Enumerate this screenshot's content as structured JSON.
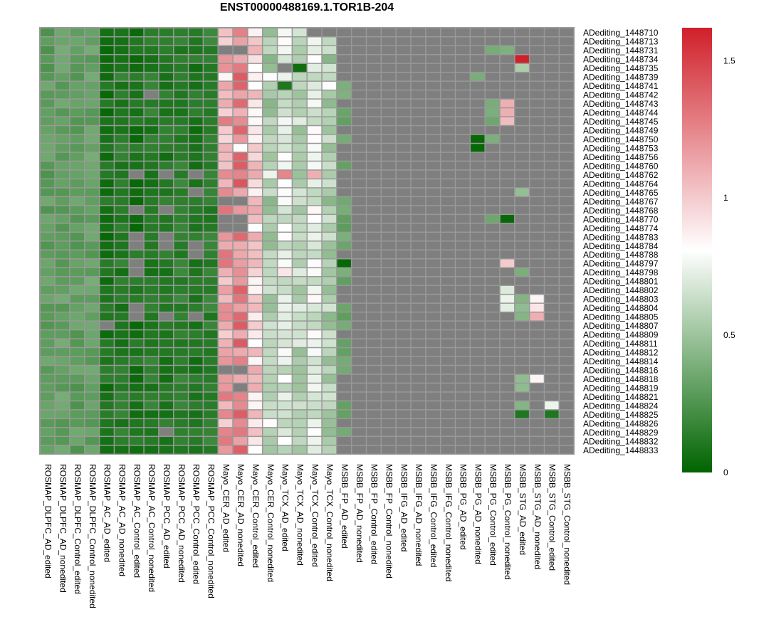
{
  "chart_data": {
    "type": "heatmap",
    "title": "ENST00000488169.1.TOR1B-204",
    "rows": [
      "ADediting_1448710",
      "ADediting_1448713",
      "ADediting_1448731",
      "ADediting_1448734",
      "ADediting_1448735",
      "ADediting_1448739",
      "ADediting_1448741",
      "ADediting_1448742",
      "ADediting_1448743",
      "ADediting_1448744",
      "ADediting_1448745",
      "ADediting_1448749",
      "ADediting_1448750",
      "ADediting_1448753",
      "ADediting_1448756",
      "ADediting_1448760",
      "ADediting_1448762",
      "ADediting_1448764",
      "ADediting_1448765",
      "ADediting_1448767",
      "ADediting_1448768",
      "ADediting_1448770",
      "ADediting_1448774",
      "ADediting_1448783",
      "ADediting_1448784",
      "ADediting_1448788",
      "ADediting_1448797",
      "ADediting_1448798",
      "ADediting_1448801",
      "ADediting_1448802",
      "ADediting_1448803",
      "ADediting_1448804",
      "ADediting_1448805",
      "ADediting_1448807",
      "ADediting_1448809",
      "ADediting_1448811",
      "ADediting_1448812",
      "ADediting_1448814",
      "ADediting_1448816",
      "ADediting_1448818",
      "ADediting_1448819",
      "ADediting_1448821",
      "ADediting_1448824",
      "ADediting_1448825",
      "ADediting_1448826",
      "ADediting_1448829",
      "ADediting_1448832",
      "ADediting_1448833"
    ],
    "columns": [
      "ROSMAP_DLPFC_AD_edited",
      "ROSMAP_DLPFC_AD_nonedited",
      "ROSMAP_DLPFC_Control_edited",
      "ROSMAP_DLPFC_Control_nonedited",
      "ROSMAP_AC_AD_edited",
      "ROSMAP_AC_AD_nonedited",
      "ROSMAP_AC_Control_edited",
      "ROSMAP_AC_Control_nonedited",
      "ROSMAP_PCC_AD_edited",
      "ROSMAP_PCC_AD_nonedited",
      "ROSMAP_PCC_Control_edited",
      "ROSMAP_PCC_Control_nonedited",
      "Mayo_CER_AD_edited",
      "Mayo_CER_AD_nonedited",
      "Mayo_CER_Control_edited",
      "Mayo_CER_Control_nonedited",
      "Mayo_TCX_AD_edited",
      "Mayo_TCX_AD_nonedited",
      "Mayo_TCX_Control_edited",
      "Mayo_TCX_Control_nonedited",
      "MSBB_FP_AD_edited",
      "MSBB_FP_AD_nonedited",
      "MSBB_FP_Control_edited",
      "MSBB_FP_Control_nonedited",
      "MSBB_IFG_AD_edited",
      "MSBB_IFG_AD_nonedited",
      "MSBB_IFG_Control_edited",
      "MSBB_IFG_Control_nonedited",
      "MSBB_PG_AD_edited",
      "MSBB_PG_AD_nonedited",
      "MSBB_PG_Control_edited",
      "MSBB_PG_Control_nonedited",
      "MSBB_STG_AD_edited",
      "MSBB_STG_AD_nonedited",
      "MSBB_STG_Control_edited",
      "MSBB_STG_Control_nonedited"
    ],
    "base_values": [
      0.3,
      0.32,
      0.3,
      0.32,
      0.08,
      0.12,
      0.08,
      0.12,
      0.1,
      0.14,
      0.1,
      0.14,
      1.15,
      1.25,
      0.95,
      0.55,
      0.7,
      0.6,
      0.72,
      0.55,
      0.35,
      0.38,
      0.38,
      0.38,
      0.35,
      0.35,
      0.38,
      0.38,
      0.35,
      0.38,
      0.4,
      0.4,
      0.42,
      0.48,
      0.45,
      0.48
    ],
    "missing": {
      "0": [
        18,
        19,
        20,
        21,
        22,
        23,
        24,
        25,
        26,
        27,
        28,
        29,
        30,
        31,
        32,
        33,
        34,
        35
      ],
      "1": [
        20,
        21,
        22,
        23,
        24,
        25,
        26,
        27,
        28,
        29,
        30,
        31,
        32,
        33,
        34,
        35
      ],
      "2": [
        12,
        13,
        20,
        21,
        22,
        23,
        24,
        25,
        26,
        27,
        28,
        29,
        32,
        33,
        34,
        35
      ],
      "3": [
        20,
        21,
        22,
        23,
        24,
        25,
        26,
        27,
        28,
        29,
        30,
        31,
        33,
        34,
        35
      ],
      "4": [
        16,
        20,
        21,
        22,
        23,
        24,
        25,
        26,
        27,
        28,
        29,
        30,
        31,
        32,
        33,
        34,
        35
      ],
      "5": [
        20,
        21,
        22,
        23,
        24,
        25,
        26,
        27,
        28,
        30,
        31,
        32,
        33,
        34,
        35
      ],
      "6": [
        21,
        22,
        23,
        24,
        25,
        26,
        27,
        28,
        29,
        30,
        31,
        32,
        33,
        34,
        35
      ],
      "7": [
        7,
        21,
        22,
        23,
        24,
        25,
        26,
        27,
        28,
        29,
        30,
        31,
        32,
        33,
        34,
        35
      ],
      "8": [
        20,
        21,
        22,
        23,
        24,
        25,
        26,
        27,
        28,
        29,
        31,
        32,
        33,
        34,
        35
      ],
      "9": [
        21,
        22,
        23,
        24,
        25,
        26,
        27,
        28,
        29,
        31,
        32,
        33,
        34,
        35
      ],
      "10": [
        21,
        22,
        23,
        24,
        25,
        26,
        27,
        28,
        29,
        31,
        32,
        33,
        34,
        35
      ],
      "11": [
        20,
        21,
        22,
        23,
        24,
        25,
        26,
        27,
        28,
        29,
        30,
        31,
        32,
        33,
        34,
        35
      ],
      "12": [
        21,
        22,
        23,
        24,
        25,
        26,
        27,
        28,
        29,
        31,
        32,
        33,
        34,
        35
      ],
      "13": [
        20,
        21,
        22,
        23,
        24,
        25,
        26,
        27,
        28,
        29,
        30,
        31,
        32,
        33,
        34,
        35
      ],
      "14": [
        20,
        21,
        22,
        23,
        24,
        25,
        26,
        27,
        28,
        29,
        30,
        31,
        32,
        33,
        34,
        35
      ],
      "15": [
        21,
        22,
        23,
        24,
        25,
        26,
        27,
        28,
        29,
        30,
        31,
        32,
        33,
        34,
        35
      ],
      "16": [
        6,
        8,
        10,
        20,
        21,
        22,
        23,
        24,
        25,
        26,
        27,
        28,
        29,
        30,
        31,
        32,
        33,
        34,
        35
      ],
      "17": [
        20,
        21,
        22,
        23,
        24,
        25,
        26,
        27,
        28,
        29,
        30,
        31,
        32,
        33,
        34,
        35
      ],
      "18": [
        10,
        20,
        21,
        22,
        23,
        24,
        25,
        26,
        27,
        28,
        29,
        30,
        31,
        33,
        34,
        35
      ],
      "19": [
        12,
        13,
        21,
        22,
        23,
        24,
        25,
        26,
        27,
        28,
        29,
        30,
        31,
        32,
        33,
        34,
        35
      ],
      "20": [
        6,
        8,
        21,
        22,
        23,
        24,
        25,
        26,
        27,
        28,
        29,
        30,
        31,
        32,
        33,
        34,
        35
      ],
      "21": [
        12,
        13,
        21,
        22,
        23,
        24,
        25,
        26,
        27,
        28,
        29,
        31,
        32,
        33,
        34,
        35
      ],
      "22": [
        12,
        13,
        21,
        22,
        23,
        24,
        25,
        26,
        27,
        28,
        29,
        30,
        31,
        32,
        33,
        34,
        35
      ],
      "23": [
        6,
        8,
        21,
        22,
        23,
        24,
        25,
        26,
        27,
        28,
        29,
        30,
        31,
        32,
        33,
        34,
        35
      ],
      "24": [
        6,
        8,
        10,
        21,
        22,
        23,
        24,
        25,
        26,
        27,
        28,
        29,
        30,
        31,
        32,
        33,
        34,
        35
      ],
      "25": [
        10,
        20,
        21,
        22,
        23,
        24,
        25,
        26,
        27,
        28,
        29,
        30,
        31,
        32,
        33,
        34,
        35
      ],
      "26": [
        6,
        21,
        22,
        23,
        24,
        25,
        26,
        27,
        28,
        29,
        30,
        31,
        32,
        33,
        34,
        35
      ],
      "27": [
        6,
        21,
        22,
        23,
        24,
        25,
        26,
        27,
        28,
        29,
        30,
        31,
        33,
        34,
        35
      ],
      "28": [
        21,
        22,
        23,
        24,
        25,
        26,
        27,
        28,
        29,
        30,
        31,
        32,
        33,
        34,
        35
      ],
      "29": [
        20,
        21,
        22,
        23,
        24,
        25,
        26,
        27,
        28,
        29,
        30,
        31,
        32,
        33,
        34,
        35
      ],
      "30": [
        20,
        21,
        22,
        23,
        24,
        25,
        26,
        27,
        28,
        29,
        30,
        31,
        33,
        34,
        35
      ],
      "31": [
        6,
        21,
        22,
        23,
        24,
        25,
        26,
        27,
        28,
        29,
        30,
        31,
        33,
        34,
        35
      ],
      "32": [
        6,
        8,
        10,
        21,
        22,
        23,
        24,
        25,
        26,
        27,
        28,
        29,
        30,
        31,
        33,
        34,
        35
      ],
      "33": [
        4,
        21,
        22,
        23,
        24,
        25,
        26,
        27,
        28,
        29,
        30,
        31,
        32,
        33,
        34,
        35
      ],
      "34": [
        20,
        21,
        22,
        23,
        24,
        25,
        26,
        27,
        28,
        29,
        30,
        31,
        32,
        33,
        34,
        35
      ],
      "35": [
        21,
        22,
        23,
        24,
        25,
        26,
        27,
        28,
        29,
        30,
        31,
        32,
        33,
        34,
        35
      ],
      "36": [
        21,
        22,
        23,
        24,
        25,
        26,
        27,
        28,
        29,
        30,
        31,
        32,
        33,
        34,
        35
      ],
      "37": [
        21,
        22,
        23,
        24,
        25,
        26,
        27,
        28,
        29,
        30,
        31,
        32,
        33,
        34,
        35
      ],
      "38": [
        12,
        13,
        21,
        22,
        23,
        24,
        25,
        26,
        27,
        28,
        29,
        30,
        31,
        32,
        33,
        34,
        35
      ],
      "39": [
        20,
        21,
        22,
        23,
        24,
        25,
        26,
        27,
        28,
        29,
        30,
        31,
        33,
        34,
        35
      ],
      "40": [
        13,
        20,
        21,
        22,
        23,
        24,
        25,
        26,
        27,
        28,
        29,
        30,
        31,
        33,
        34,
        35
      ],
      "41": [
        20,
        21,
        22,
        23,
        24,
        25,
        26,
        27,
        28,
        29,
        30,
        31,
        32,
        33,
        34,
        35
      ],
      "42": [
        21,
        22,
        23,
        24,
        25,
        26,
        27,
        28,
        29,
        30,
        31,
        33,
        35
      ],
      "43": [
        21,
        22,
        23,
        24,
        25,
        26,
        27,
        28,
        29,
        30,
        31,
        33,
        34,
        35
      ],
      "44": [
        20,
        21,
        22,
        23,
        24,
        25,
        26,
        27,
        28,
        29,
        30,
        31,
        32,
        33,
        34,
        35
      ],
      "45": [
        8,
        21,
        22,
        23,
        24,
        25,
        26,
        27,
        28,
        29,
        30,
        31,
        32,
        33,
        34,
        35
      ],
      "46": [
        20,
        21,
        22,
        23,
        24,
        25,
        26,
        27,
        28,
        29,
        30,
        31,
        32,
        33,
        34,
        35
      ],
      "47": [
        20,
        21,
        22,
        23,
        24,
        25,
        26,
        27,
        28,
        29,
        30,
        31,
        32,
        33,
        34,
        35
      ]
    },
    "overrides": [
      [
        3,
        32,
        1.62
      ],
      [
        4,
        32,
        0.55
      ],
      [
        42,
        34,
        0.75
      ],
      [
        43,
        32,
        0.1
      ],
      [
        43,
        34,
        0.1
      ],
      [
        12,
        29,
        0.02
      ],
      [
        13,
        29,
        0.02
      ],
      [
        21,
        31,
        0.02
      ],
      [
        26,
        20,
        0.02
      ],
      [
        8,
        31,
        1.1
      ],
      [
        9,
        31,
        1.1
      ],
      [
        10,
        31,
        1.05
      ],
      [
        26,
        31,
        1.0
      ],
      [
        29,
        31,
        0.7
      ],
      [
        30,
        31,
        0.75
      ],
      [
        31,
        31,
        0.72
      ],
      [
        30,
        33,
        0.85
      ],
      [
        31,
        33,
        0.9
      ],
      [
        32,
        33,
        1.1
      ],
      [
        39,
        33,
        0.85
      ],
      [
        4,
        17,
        0.05
      ],
      [
        5,
        12,
        0.85
      ],
      [
        5,
        15,
        0.8
      ],
      [
        6,
        16,
        0.1
      ],
      [
        6,
        19,
        0.8
      ],
      [
        7,
        12,
        1.05
      ],
      [
        12,
        12,
        0.95
      ],
      [
        13,
        13,
        0.8
      ],
      [
        16,
        16,
        1.25
      ],
      [
        16,
        18,
        1.1
      ],
      [
        16,
        15,
        0.75
      ],
      [
        23,
        16,
        0.82
      ],
      [
        27,
        16,
        0.9
      ],
      [
        44,
        15,
        0.82
      ]
    ],
    "color_scale": {
      "min": 0,
      "max": 1.62,
      "ticks": [
        0,
        0.5,
        1,
        1.5
      ],
      "tick_labels": [
        "0",
        "0.5",
        "1",
        "1.5"
      ],
      "colors": [
        "#006400",
        "#ffffff",
        "#d0202a"
      ],
      "missing_color": "#7f7f7f",
      "grid_color": "#999999"
    }
  }
}
